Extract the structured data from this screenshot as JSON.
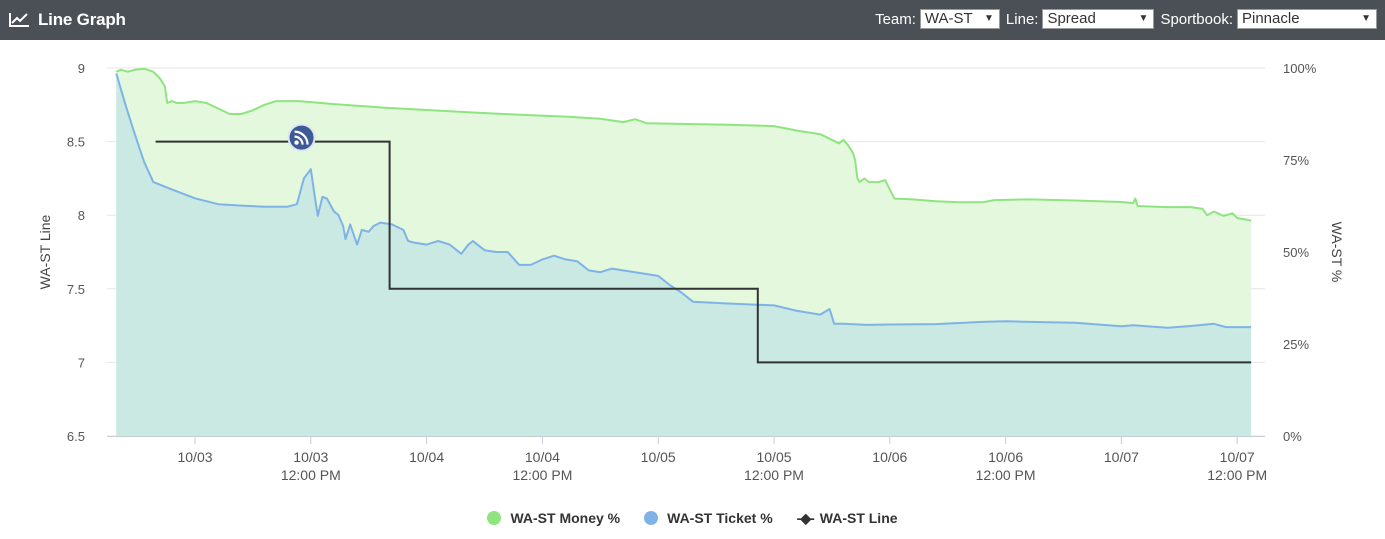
{
  "header": {
    "title": "Line Graph",
    "icon": "line-chart-icon",
    "controls": [
      {
        "label": "Team:",
        "value": "WA-ST"
      },
      {
        "label": "Line:",
        "value": "Spread"
      },
      {
        "label": "Sportbook:",
        "value": "Pinnacle"
      }
    ]
  },
  "chart_data": {
    "type": "line",
    "x_ticks": [
      {
        "t": 1,
        "line1": "10/03",
        "line2": ""
      },
      {
        "t": 1.5,
        "line1": "10/03",
        "line2": "12:00 PM"
      },
      {
        "t": 2,
        "line1": "10/04",
        "line2": ""
      },
      {
        "t": 2.5,
        "line1": "10/04",
        "line2": "12:00 PM"
      },
      {
        "t": 3,
        "line1": "10/05",
        "line2": ""
      },
      {
        "t": 3.5,
        "line1": "10/05",
        "line2": "12:00 PM"
      },
      {
        "t": 4,
        "line1": "10/06",
        "line2": ""
      },
      {
        "t": 4.5,
        "line1": "10/06",
        "line2": "12:00 PM"
      },
      {
        "t": 5,
        "line1": "10/07",
        "line2": ""
      },
      {
        "t": 5.5,
        "line1": "10/07",
        "line2": "12:00 PM"
      }
    ],
    "x_range": [
      0.62,
      5.62
    ],
    "y_left": {
      "label": "WA-ST Line",
      "min": 6.5,
      "max": 9,
      "ticks": [
        "9",
        "8.5",
        "8",
        "7.5",
        "7",
        "6.5"
      ]
    },
    "y_right": {
      "label": "WA-ST %",
      "min": 0,
      "max": 100,
      "ticks": [
        "100%",
        "75%",
        "50%",
        "25%",
        "0%"
      ]
    },
    "grid": true,
    "legend_position": "bottom",
    "colors": {
      "money": "#8ee57f",
      "money_fill": "#e3f8dc",
      "ticket": "#7fb3e8",
      "ticket_fill": "#cae9e3",
      "line": "#333333",
      "grid": "#e6e6e6"
    },
    "series": [
      {
        "name": "WA-ST Money %",
        "axis": "right",
        "values": [
          [
            0.66,
            99
          ],
          [
            0.68,
            99.5
          ],
          [
            0.71,
            99
          ],
          [
            0.74,
            99.5
          ],
          [
            0.78,
            99.8
          ],
          [
            0.82,
            99
          ],
          [
            0.85,
            97
          ],
          [
            0.87,
            95
          ],
          [
            0.88,
            90.5
          ],
          [
            0.9,
            91
          ],
          [
            0.92,
            90.5
          ],
          [
            0.95,
            90.5
          ],
          [
            1.0,
            91
          ],
          [
            1.05,
            90.5
          ],
          [
            1.1,
            89
          ],
          [
            1.15,
            87.5
          ],
          [
            1.2,
            87.5
          ],
          [
            1.25,
            88.5
          ],
          [
            1.3,
            90
          ],
          [
            1.35,
            91
          ],
          [
            1.45,
            91
          ],
          [
            1.6,
            90.2
          ],
          [
            1.8,
            89.3
          ],
          [
            2.0,
            88.6
          ],
          [
            2.2,
            87.9
          ],
          [
            2.4,
            87.3
          ],
          [
            2.6,
            86.8
          ],
          [
            2.75,
            86.2
          ],
          [
            2.85,
            85.3
          ],
          [
            2.9,
            86.1
          ],
          [
            2.95,
            85
          ],
          [
            3.1,
            84.8
          ],
          [
            3.3,
            84.6
          ],
          [
            3.5,
            84.2
          ],
          [
            3.6,
            83
          ],
          [
            3.7,
            82
          ],
          [
            3.75,
            80.5
          ],
          [
            3.78,
            79.5
          ],
          [
            3.8,
            80.5
          ],
          [
            3.82,
            79
          ],
          [
            3.84,
            77
          ],
          [
            3.85,
            75
          ],
          [
            3.86,
            70
          ],
          [
            3.87,
            69
          ],
          [
            3.89,
            70
          ],
          [
            3.91,
            69
          ],
          [
            3.95,
            69
          ],
          [
            3.98,
            69.5
          ],
          [
            4.0,
            67
          ],
          [
            4.02,
            64.5
          ],
          [
            4.1,
            64.3
          ],
          [
            4.2,
            63.8
          ],
          [
            4.3,
            63.5
          ],
          [
            4.4,
            63.5
          ],
          [
            4.45,
            64.1
          ],
          [
            4.6,
            64.3
          ],
          [
            4.8,
            64
          ],
          [
            5.0,
            63.6
          ],
          [
            5.05,
            63.3
          ],
          [
            5.06,
            64.5
          ],
          [
            5.07,
            62.5
          ],
          [
            5.2,
            62.2
          ],
          [
            5.3,
            62.2
          ],
          [
            5.35,
            61.7
          ],
          [
            5.37,
            60
          ],
          [
            5.4,
            61
          ],
          [
            5.44,
            59.8
          ],
          [
            5.48,
            60.5
          ],
          [
            5.5,
            59.2
          ],
          [
            5.54,
            58.8
          ],
          [
            5.56,
            58.5
          ]
        ]
      },
      {
        "name": "WA-ST Ticket %",
        "axis": "right",
        "values": [
          [
            0.66,
            98.5
          ],
          [
            0.7,
            90
          ],
          [
            0.74,
            82
          ],
          [
            0.78,
            74.5
          ],
          [
            0.82,
            69
          ],
          [
            0.9,
            67
          ],
          [
            1.0,
            64.6
          ],
          [
            1.1,
            63
          ],
          [
            1.2,
            62.6
          ],
          [
            1.3,
            62.3
          ],
          [
            1.4,
            62.3
          ],
          [
            1.44,
            63
          ],
          [
            1.47,
            70
          ],
          [
            1.5,
            72.5
          ],
          [
            1.52,
            64
          ],
          [
            1.53,
            59.8
          ],
          [
            1.55,
            65
          ],
          [
            1.57,
            64.5
          ],
          [
            1.6,
            61
          ],
          [
            1.62,
            60
          ],
          [
            1.64,
            57
          ],
          [
            1.65,
            53.5
          ],
          [
            1.67,
            57.5
          ],
          [
            1.7,
            52
          ],
          [
            1.72,
            56
          ],
          [
            1.75,
            55.5
          ],
          [
            1.77,
            57
          ],
          [
            1.8,
            58
          ],
          [
            1.85,
            57.5
          ],
          [
            1.9,
            56
          ],
          [
            1.92,
            53
          ],
          [
            1.95,
            52.5
          ],
          [
            2.0,
            52
          ],
          [
            2.05,
            53
          ],
          [
            2.1,
            52
          ],
          [
            2.15,
            49.5
          ],
          [
            2.18,
            52
          ],
          [
            2.2,
            53
          ],
          [
            2.25,
            50.5
          ],
          [
            2.3,
            50
          ],
          [
            2.35,
            50
          ],
          [
            2.4,
            46.5
          ],
          [
            2.45,
            46.5
          ],
          [
            2.5,
            48
          ],
          [
            2.55,
            49
          ],
          [
            2.6,
            48
          ],
          [
            2.65,
            47.5
          ],
          [
            2.7,
            45
          ],
          [
            2.75,
            44.5
          ],
          [
            2.8,
            45.5
          ],
          [
            2.9,
            44.5
          ],
          [
            3.0,
            43.5
          ],
          [
            3.05,
            41
          ],
          [
            3.1,
            39
          ],
          [
            3.15,
            36.5
          ],
          [
            3.3,
            36
          ],
          [
            3.5,
            35.5
          ],
          [
            3.6,
            34
          ],
          [
            3.65,
            33.5
          ],
          [
            3.7,
            33
          ],
          [
            3.74,
            34.5
          ],
          [
            3.76,
            30.5
          ],
          [
            3.8,
            30.5
          ],
          [
            3.9,
            30.2
          ],
          [
            4.0,
            30.3
          ],
          [
            4.2,
            30.4
          ],
          [
            4.4,
            31
          ],
          [
            4.5,
            31.2
          ],
          [
            4.6,
            31
          ],
          [
            4.8,
            30.8
          ],
          [
            5.0,
            29.8
          ],
          [
            5.05,
            30.1
          ],
          [
            5.2,
            29.4
          ],
          [
            5.3,
            29.9
          ],
          [
            5.4,
            30.5
          ],
          [
            5.45,
            29.6
          ],
          [
            5.56,
            29.6
          ]
        ]
      },
      {
        "name": "WA-ST Line",
        "axis": "left",
        "values": [
          [
            0.83,
            8.5
          ],
          [
            1.84,
            8.5
          ],
          [
            1.84,
            7.5
          ],
          [
            3.43,
            7.5
          ],
          [
            3.43,
            7
          ],
          [
            5.56,
            7
          ]
        ]
      }
    ],
    "annotation": {
      "icon": "rss-feed-icon",
      "x": 1.46,
      "y": 8.5
    }
  }
}
